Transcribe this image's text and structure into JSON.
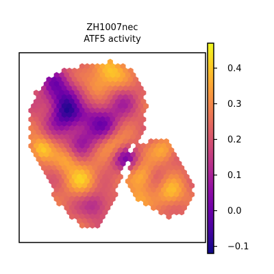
{
  "chart_data": {
    "type": "heatmap",
    "title": "ZH1007nec",
    "subtitle": "ATF5 activity",
    "xlabel": "",
    "ylabel": "",
    "colormap": "plasma",
    "colorbar": {
      "min": -0.12,
      "max": 0.47,
      "ticks": [
        0.4,
        0.3,
        0.2,
        0.1,
        0.0,
        -0.1
      ],
      "tick_labels": [
        "0.4",
        "0.3",
        "0.2",
        "0.1",
        "0.0",
        "−0.1"
      ]
    },
    "grid": false,
    "axis_ticks": false,
    "regions": [
      {
        "label": "dark low-activity patch upper left",
        "value": -0.08
      },
      {
        "label": "bright high-activity patches scattered",
        "value": 0.42
      },
      {
        "label": "tissue background typical",
        "value": 0.25
      }
    ]
  },
  "colors": {
    "frame": "#000000",
    "background": "#ffffff"
  }
}
